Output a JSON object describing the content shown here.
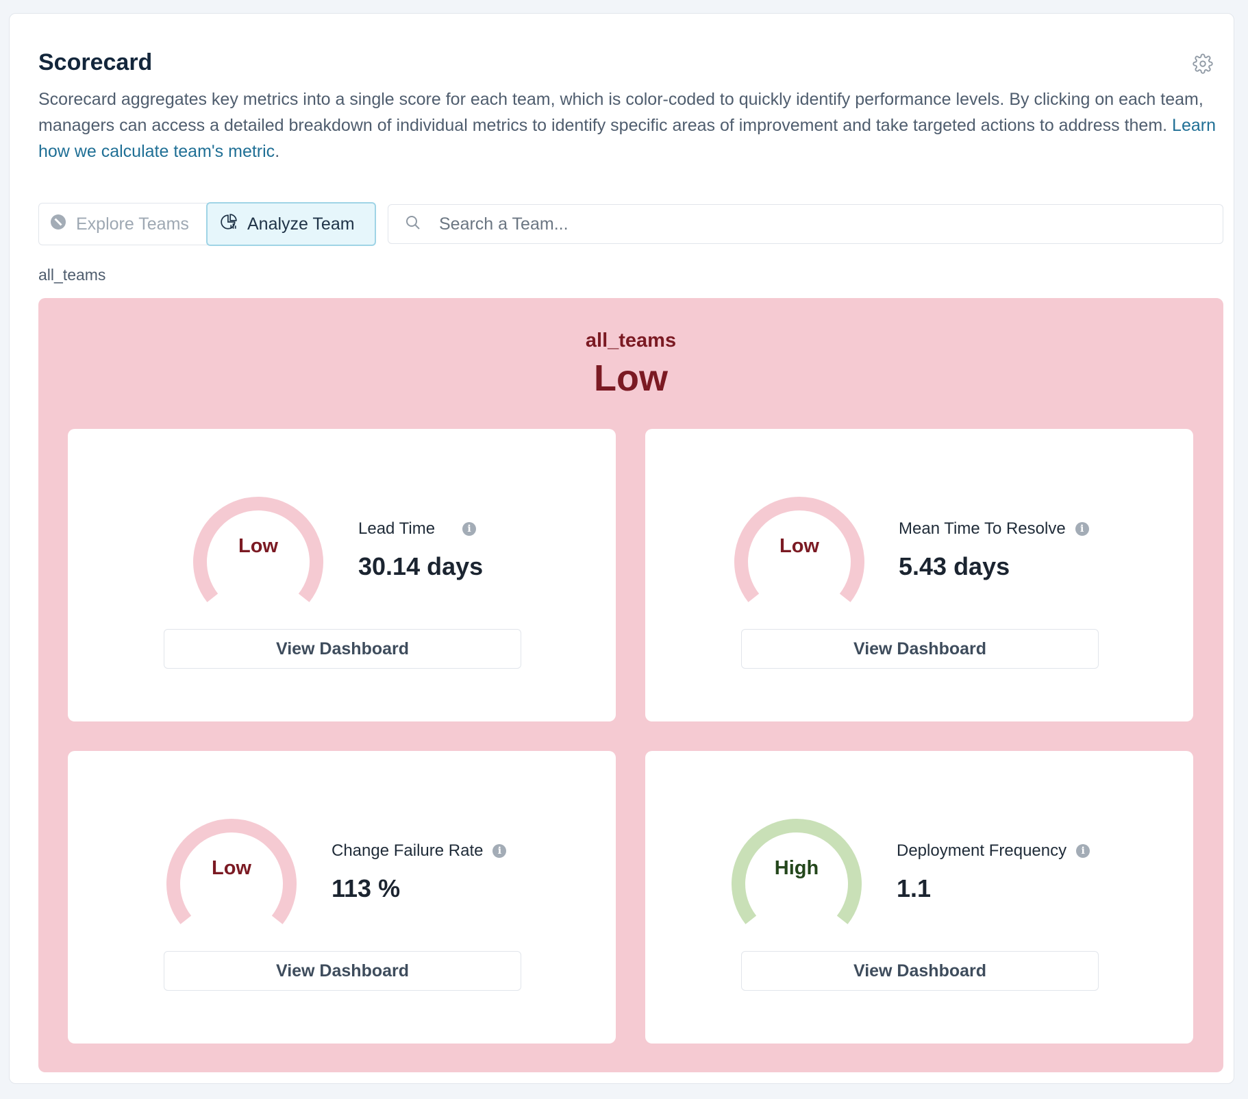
{
  "header": {
    "title": "Scorecard",
    "description": "Scorecard aggregates key metrics into a single score for each team, which is color-coded to quickly identify performance levels. By clicking on each team, managers can access a detailed breakdown of individual metrics to identify specific areas of improvement and take targeted actions to address them. ",
    "learn_link": "Learn how we calculate team's metric",
    "link_suffix": "."
  },
  "toggle": {
    "explore_label": "Explore Teams",
    "analyze_label": "Analyze Team",
    "active": "analyze"
  },
  "search": {
    "placeholder": "Search a Team..."
  },
  "breadcrumb": "all_teams",
  "team": {
    "name": "all_teams",
    "level": "Low"
  },
  "metrics": [
    {
      "name": "Lead Time",
      "value": "30.14 days",
      "level": "Low",
      "button": "View Dashboard"
    },
    {
      "name": "Mean Time To Resolve",
      "value": "5.43 days",
      "level": "Low",
      "button": "View Dashboard"
    },
    {
      "name": "Change Failure Rate",
      "value": "113 %",
      "level": "Low",
      "button": "View Dashboard"
    },
    {
      "name": "Deployment Frequency",
      "value": "1.1",
      "level": "High",
      "button": "View Dashboard"
    }
  ],
  "colors": {
    "low_panel": "#f5cad2",
    "low_arc": "#f5cad2",
    "low_text": "#7b1a23",
    "high_arc": "#c9e0b7",
    "high_text": "#23461b",
    "link": "#1f6f95"
  },
  "icons": {
    "settings": "gear-icon",
    "explore": "compass-icon",
    "analyze": "chart-pie-icon",
    "search": "search-icon",
    "info": "info-icon"
  }
}
